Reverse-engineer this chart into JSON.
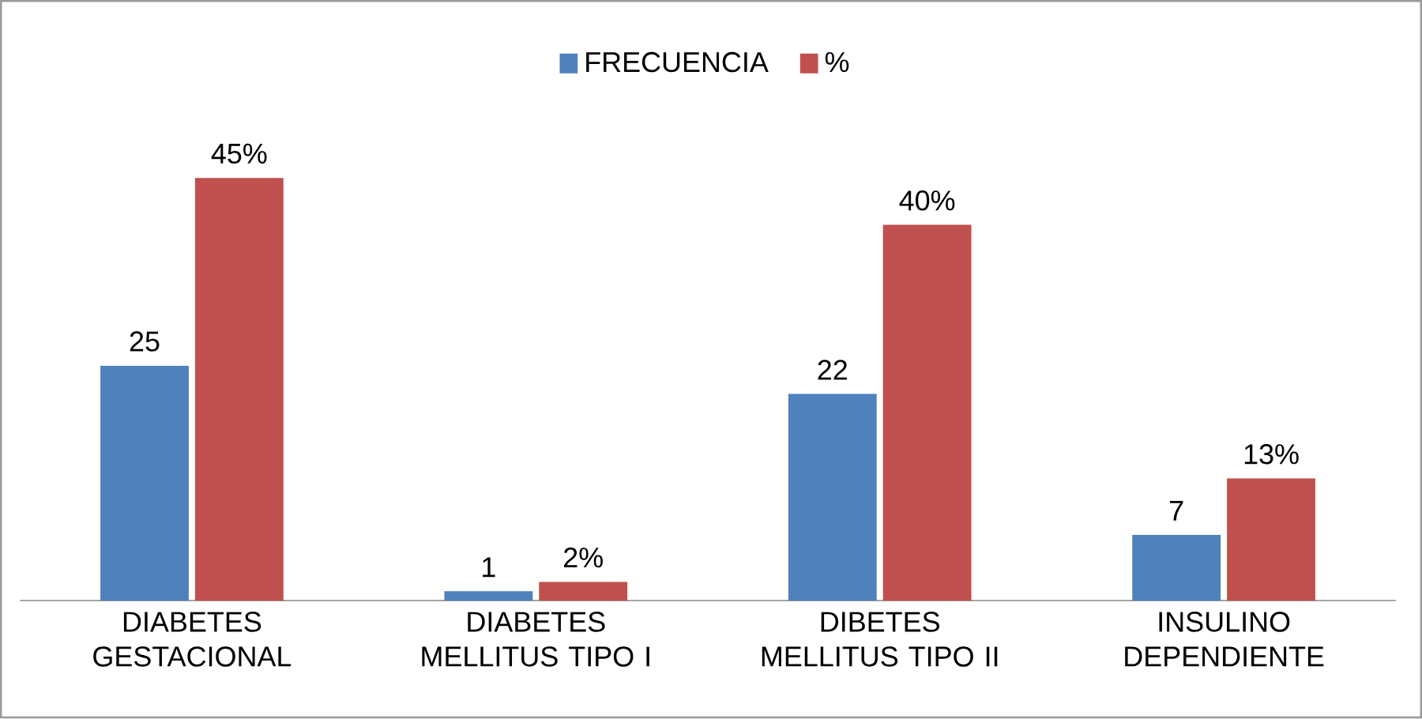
{
  "chart_data": {
    "type": "bar",
    "categories": [
      "DIABETES GESTACIONAL",
      "DIABETES MELLITUS TIPO I",
      "DIBETES MELLITUS TIPO II",
      "INSULINO DEPENDIENTE"
    ],
    "series": [
      {
        "name": "FRECUENCIA",
        "color": "#4f81bd",
        "values": [
          25,
          1,
          22,
          7
        ],
        "value_labels": [
          "25",
          "1",
          "22",
          "7"
        ]
      },
      {
        "name": "%",
        "color": "#c0504d",
        "values": [
          45,
          2,
          40,
          13
        ],
        "value_labels": [
          "45%",
          "2%",
          "40%",
          "13%"
        ]
      }
    ],
    "tick_labels": "x",
    "grid": false,
    "legend": "top"
  }
}
